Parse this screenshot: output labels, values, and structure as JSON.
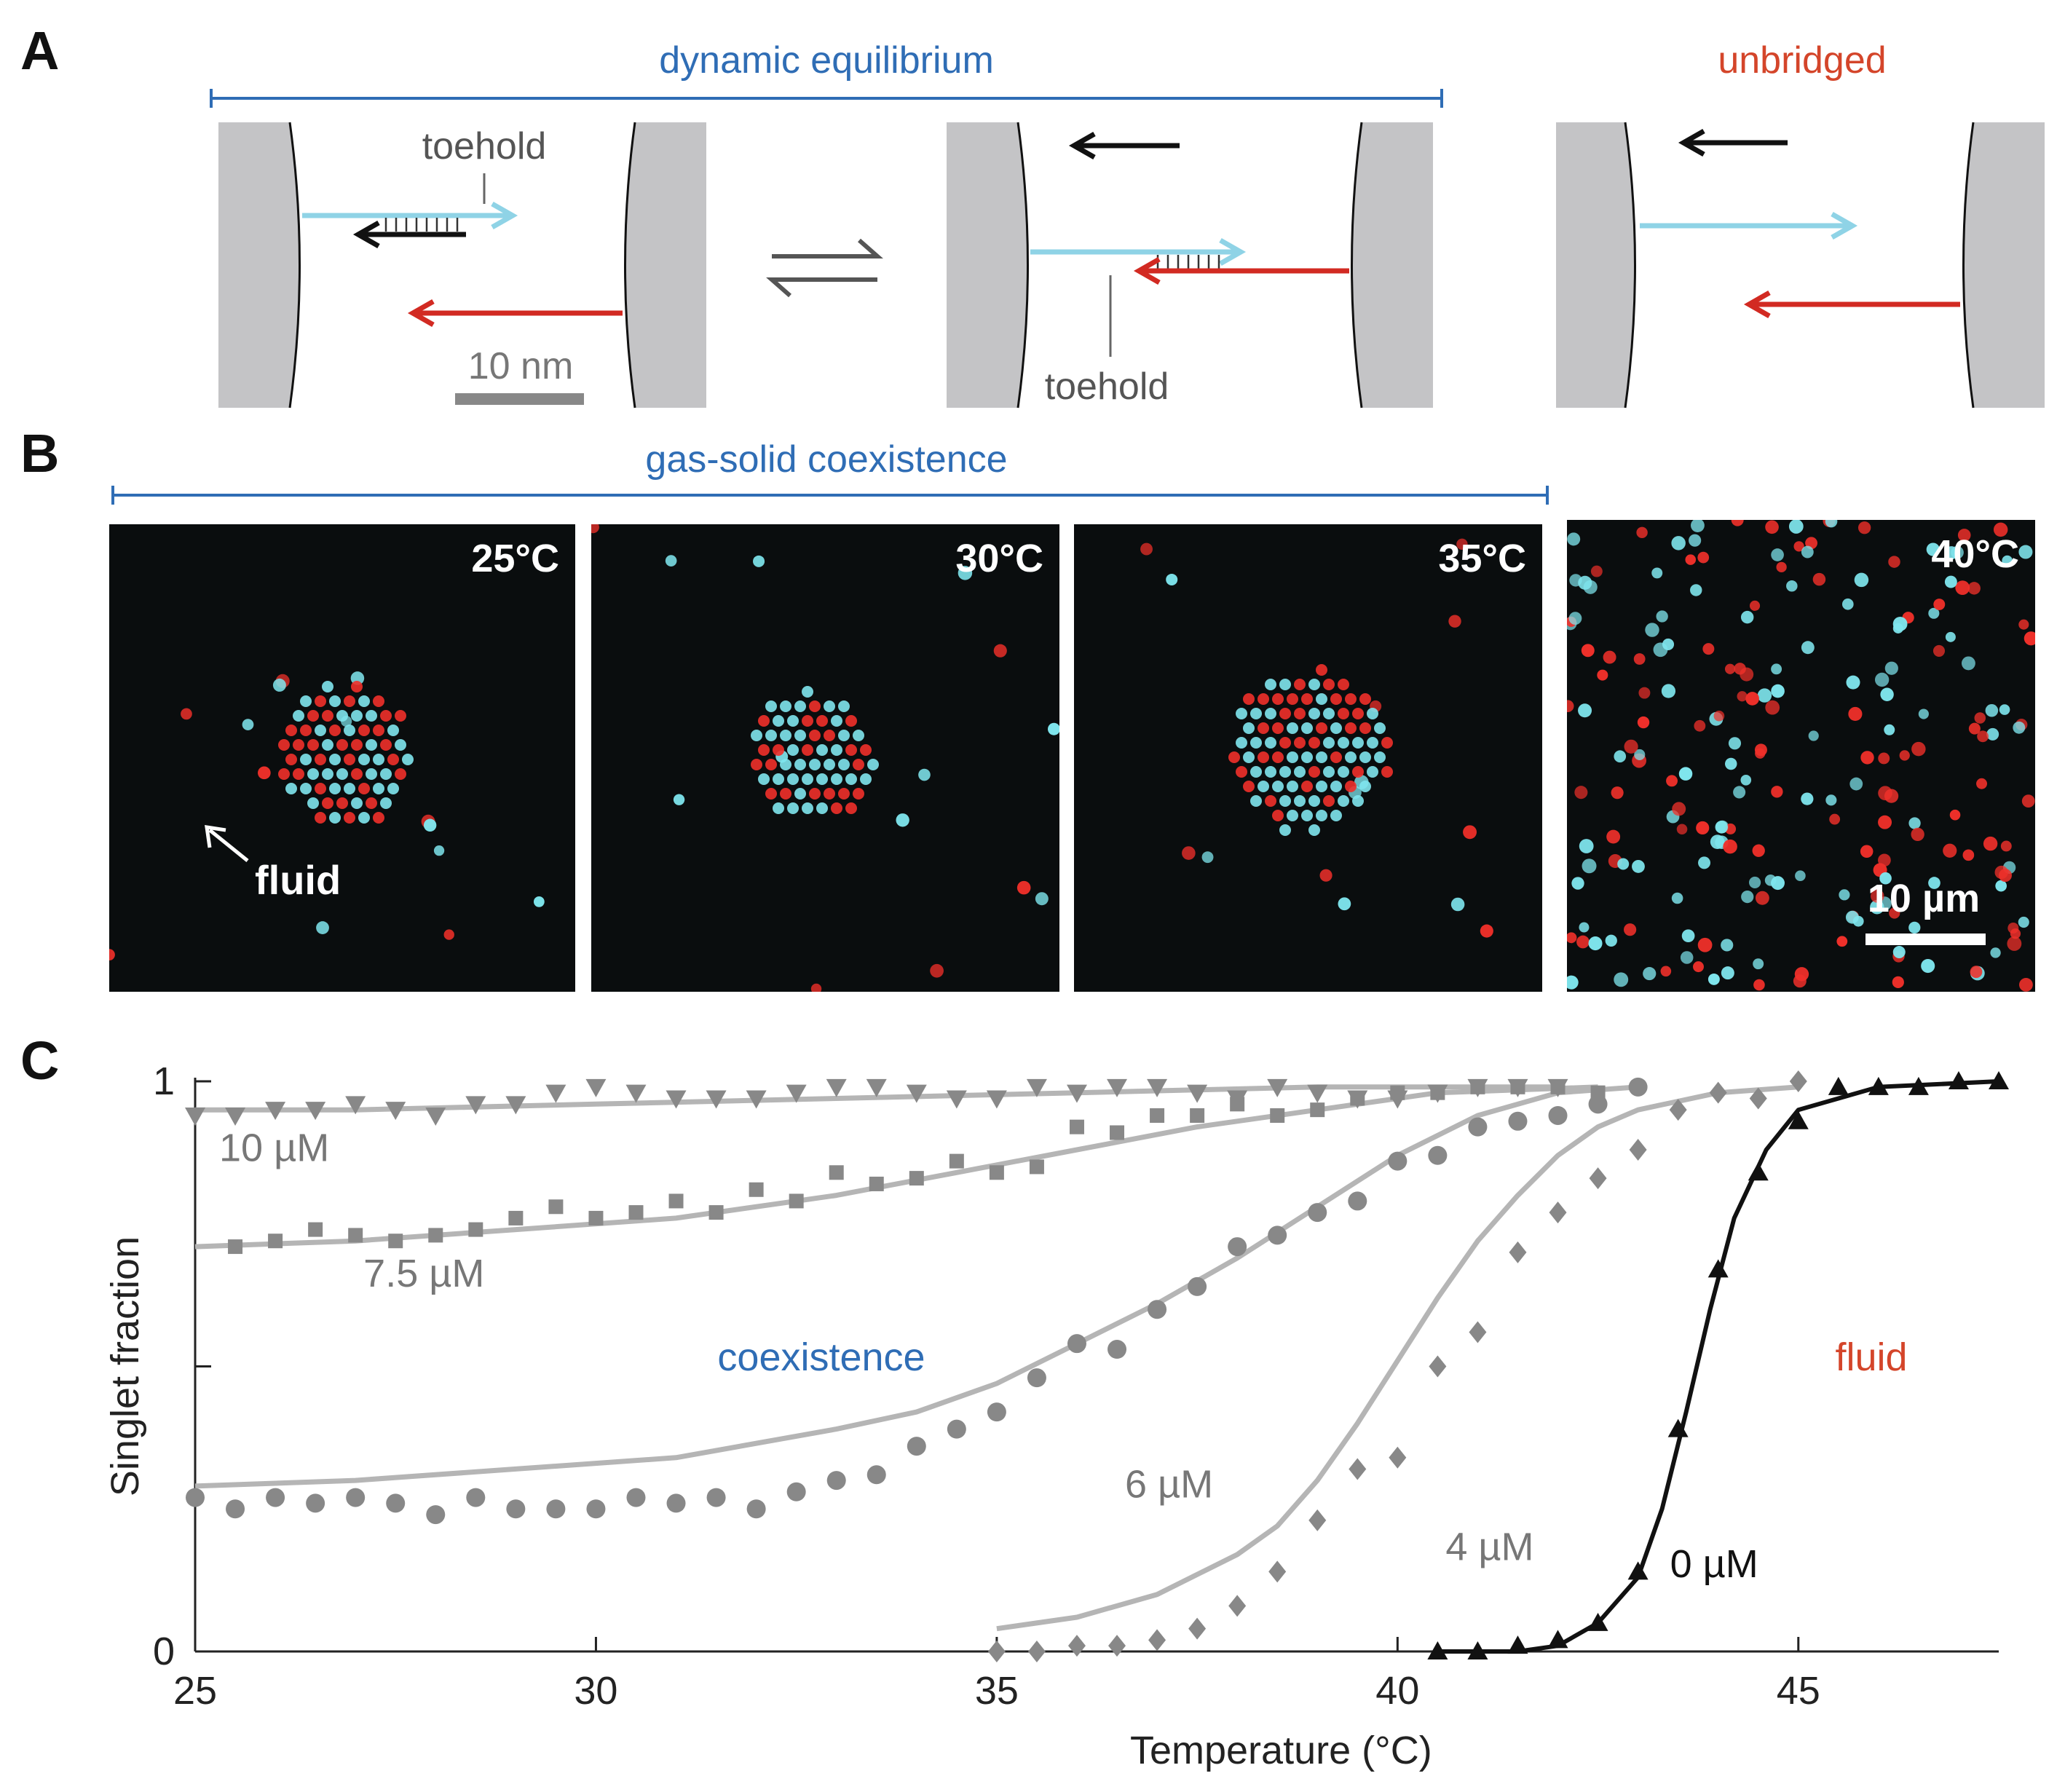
{
  "panel_a": {
    "letter": "A",
    "bracket_label": "dynamic equilibrium",
    "unbridged_label": "unbridged",
    "toehold_label_1": "toehold",
    "toehold_label_2": "toehold",
    "scale_label": "10 nm"
  },
  "panel_b": {
    "letter": "B",
    "bracket_label": "gas-solid coexistence",
    "images": [
      {
        "temp": "25°C"
      },
      {
        "temp": "30°C"
      },
      {
        "temp": "35°C"
      },
      {
        "temp": "40°C"
      }
    ],
    "fluid_label": "fluid",
    "scale_label": "10 µm"
  },
  "panel_c": {
    "letter": "C",
    "region_coexistence": "coexistence",
    "region_fluid": "fluid"
  },
  "colors": {
    "blue_text": "#2f6db5",
    "red_text": "#d4452a",
    "cyan_strand": "#8fd3e6",
    "red_strand": "#d22a22",
    "gray_data": "#888888",
    "fit_gray": "#b5b5b5"
  },
  "chart_data": {
    "type": "scatter",
    "xlabel": "Temperature (°C)",
    "ylabel": "Singlet fraction",
    "xlim": [
      25,
      47.5
    ],
    "ylim": [
      0,
      1
    ],
    "xticks": [
      25,
      30,
      35,
      40,
      45
    ],
    "yticks": [
      0,
      1
    ],
    "series": [
      {
        "name": "10 µM",
        "marker": "triangle-down",
        "color": "#888888",
        "x": [
          25,
          25.5,
          26,
          26.5,
          27,
          27.5,
          28,
          28.5,
          29,
          29.5,
          30,
          30.5,
          31,
          31.5,
          32,
          32.5,
          33,
          33.5,
          34,
          34.5,
          35,
          35.5,
          36,
          36.5,
          37,
          37.5,
          38,
          38.5,
          39,
          39.5,
          40,
          40.5,
          41,
          41.5,
          42
        ],
        "y": [
          0.94,
          0.94,
          0.95,
          0.95,
          0.96,
          0.95,
          0.94,
          0.96,
          0.96,
          0.98,
          0.99,
          0.98,
          0.97,
          0.97,
          0.97,
          0.98,
          0.99,
          0.99,
          0.98,
          0.97,
          0.97,
          0.99,
          0.98,
          0.99,
          0.99,
          0.98,
          0.97,
          0.99,
          0.98,
          0.97,
          0.97,
          0.98,
          0.99,
          0.99,
          0.99
        ]
      },
      {
        "name": "7.5 µM",
        "marker": "square",
        "color": "#888888",
        "x": [
          25.5,
          26,
          26.5,
          27,
          27.5,
          28,
          28.5,
          29,
          29.5,
          30,
          30.5,
          31,
          31.5,
          32,
          32.5,
          33,
          33.5,
          34,
          34.5,
          35,
          35.5,
          36,
          36.5,
          37,
          37.5,
          38,
          38.5,
          39,
          39.5,
          40,
          40.5,
          41,
          41.5,
          42,
          42.5
        ],
        "y": [
          0.71,
          0.72,
          0.74,
          0.73,
          0.72,
          0.73,
          0.74,
          0.76,
          0.78,
          0.76,
          0.77,
          0.79,
          0.77,
          0.81,
          0.79,
          0.84,
          0.82,
          0.83,
          0.86,
          0.84,
          0.85,
          0.92,
          0.91,
          0.94,
          0.94,
          0.96,
          0.94,
          0.95,
          0.97,
          0.98,
          0.98,
          0.99,
          0.99,
          0.99,
          0.98
        ]
      },
      {
        "name": "6 µM",
        "marker": "circle",
        "color": "#888888",
        "x": [
          25,
          25.5,
          26,
          26.5,
          27,
          27.5,
          28,
          28.5,
          29,
          29.5,
          30,
          30.5,
          31,
          31.5,
          32,
          32.5,
          33,
          33.5,
          34,
          34.5,
          35,
          35.5,
          36,
          36.5,
          37,
          37.5,
          38,
          38.5,
          39,
          39.5,
          40,
          40.5,
          41,
          41.5,
          42,
          42.5,
          43
        ],
        "y": [
          0.27,
          0.25,
          0.27,
          0.26,
          0.27,
          0.26,
          0.24,
          0.27,
          0.25,
          0.25,
          0.25,
          0.27,
          0.26,
          0.27,
          0.25,
          0.28,
          0.3,
          0.31,
          0.36,
          0.39,
          0.42,
          0.48,
          0.54,
          0.53,
          0.6,
          0.64,
          0.71,
          0.73,
          0.77,
          0.79,
          0.86,
          0.87,
          0.92,
          0.93,
          0.94,
          0.96,
          0.99
        ]
      },
      {
        "name": "4 µM",
        "marker": "diamond",
        "color": "#888888",
        "x": [
          35,
          35.5,
          36,
          36.5,
          37,
          37.5,
          38,
          38.5,
          39,
          39.5,
          40,
          40.5,
          41,
          41.5,
          42,
          42.5,
          43,
          43.5,
          44,
          44.5,
          45
        ],
        "y": [
          0,
          0,
          0.01,
          0.01,
          0.02,
          0.04,
          0.08,
          0.14,
          0.23,
          0.32,
          0.34,
          0.5,
          0.56,
          0.7,
          0.77,
          0.83,
          0.88,
          0.95,
          0.98,
          0.97,
          1.0
        ]
      },
      {
        "name": "0 µM",
        "marker": "triangle-up",
        "color": "#111111",
        "x": [
          40.5,
          41,
          41.5,
          42,
          42.5,
          43,
          43.5,
          44,
          44.5,
          45,
          45.5,
          46,
          46.5,
          47,
          47.5
        ],
        "y": [
          0,
          0,
          0.01,
          0.02,
          0.05,
          0.14,
          0.39,
          0.67,
          0.84,
          0.93,
          0.99,
          0.99,
          0.99,
          1.0,
          1.0
        ]
      }
    ],
    "fits": [
      {
        "series": "10 µM",
        "color": "#b5b5b5",
        "x": [
          25,
          27,
          30,
          33,
          36,
          39,
          42
        ],
        "y": [
          0.95,
          0.95,
          0.96,
          0.97,
          0.98,
          0.99,
          0.99
        ]
      },
      {
        "series": "7.5 µM",
        "color": "#b5b5b5",
        "x": [
          25,
          27,
          29,
          31,
          33,
          34.5,
          36,
          37.5,
          39,
          40.5,
          42.5
        ],
        "y": [
          0.71,
          0.72,
          0.74,
          0.76,
          0.8,
          0.84,
          0.88,
          0.92,
          0.95,
          0.98,
          0.99
        ]
      },
      {
        "series": "6 µM",
        "color": "#b5b5b5",
        "x": [
          25,
          27,
          29,
          31,
          33,
          34,
          35,
          36,
          37,
          38,
          39,
          40,
          41,
          42,
          43
        ],
        "y": [
          0.29,
          0.3,
          0.32,
          0.34,
          0.39,
          0.42,
          0.47,
          0.54,
          0.61,
          0.69,
          0.78,
          0.87,
          0.94,
          0.98,
          0.99
        ]
      },
      {
        "series": "4 µM",
        "color": "#b5b5b5",
        "x": [
          35,
          36,
          37,
          38,
          38.5,
          39,
          39.5,
          40,
          40.5,
          41,
          41.5,
          42,
          42.5,
          43,
          44,
          45
        ],
        "y": [
          0.04,
          0.06,
          0.1,
          0.17,
          0.22,
          0.3,
          0.4,
          0.51,
          0.62,
          0.72,
          0.8,
          0.87,
          0.92,
          0.95,
          0.98,
          0.99
        ]
      },
      {
        "series": "0 µM",
        "color": "#111111",
        "x": [
          40.5,
          41.5,
          42,
          42.5,
          43,
          43.3,
          43.6,
          43.9,
          44.2,
          44.6,
          45,
          46,
          47.5
        ],
        "y": [
          0,
          0.0,
          0.01,
          0.05,
          0.13,
          0.25,
          0.42,
          0.6,
          0.76,
          0.88,
          0.95,
          0.99,
          1.0
        ]
      }
    ],
    "point_labels": [
      {
        "text": "10 µM",
        "x": 25.3,
        "y": 0.86
      },
      {
        "text": "7.5 µM",
        "x": 27.1,
        "y": 0.64
      },
      {
        "text": "6 µM",
        "x": 36.6,
        "y": 0.27
      },
      {
        "text": "4 µM",
        "x": 40.6,
        "y": 0.16
      },
      {
        "text": "0 µM",
        "x": 43.4,
        "y": 0.13
      }
    ]
  }
}
